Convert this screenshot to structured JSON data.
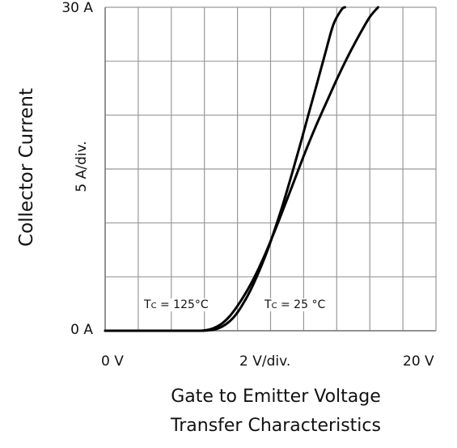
{
  "chart_data": {
    "type": "line",
    "title": "",
    "subtitle": "Transfer Characteristics",
    "xlabel": "Gate to Emitter Voltage",
    "ylabel": "Collector Current",
    "x_scale_text": "2  V/div.",
    "y_scale_text": "5  A/div.",
    "x_tick_labels": [
      "0  V",
      "20  V"
    ],
    "y_tick_labels": [
      "30  A",
      "0  A"
    ],
    "xlim": [
      0,
      20
    ],
    "ylim": [
      0,
      30
    ],
    "x_divisions": 10,
    "y_divisions": 6,
    "grid": true,
    "series": [
      {
        "name_prefix": "T",
        "name_sub": "C",
        "name_suffix": " = 125°C",
        "x": [
          0,
          2,
          4,
          5.5,
          6.0,
          6.5,
          7.0,
          7.5,
          8.0,
          8.5,
          9.0,
          9.5,
          10.0,
          10.5,
          11.0,
          11.5,
          12.0,
          12.5,
          13.0,
          13.5,
          14.0,
          14.5,
          15.0,
          15.5,
          16.0,
          16.5
        ],
        "y": [
          0,
          0,
          0,
          0,
          0.03,
          0.2,
          0.6,
          1.3,
          2.3,
          3.5,
          4.9,
          6.5,
          8.3,
          10.2,
          12.2,
          14.2,
          16.2,
          18.1,
          19.9,
          21.6,
          23.3,
          24.9,
          26.4,
          27.8,
          29.1,
          30.0
        ]
      },
      {
        "name_prefix": "T",
        "name_sub": "C",
        "name_suffix": " = 25  °C",
        "x": [
          0,
          2,
          4,
          5.8,
          6.3,
          6.8,
          7.3,
          7.8,
          8.3,
          8.8,
          9.3,
          9.8,
          10.3,
          10.8,
          11.3,
          11.8,
          12.3,
          12.8,
          13.3,
          13.8,
          14.3,
          14.5
        ],
        "y": [
          0,
          0,
          0,
          0,
          0.05,
          0.2,
          0.6,
          1.3,
          2.4,
          3.8,
          5.5,
          7.4,
          9.6,
          12.0,
          14.6,
          17.3,
          20.1,
          22.9,
          25.7,
          28.4,
          29.8,
          30.0
        ]
      }
    ]
  },
  "colors": {
    "grid": "#999999",
    "curve": "#000000",
    "axis": "#777777"
  }
}
